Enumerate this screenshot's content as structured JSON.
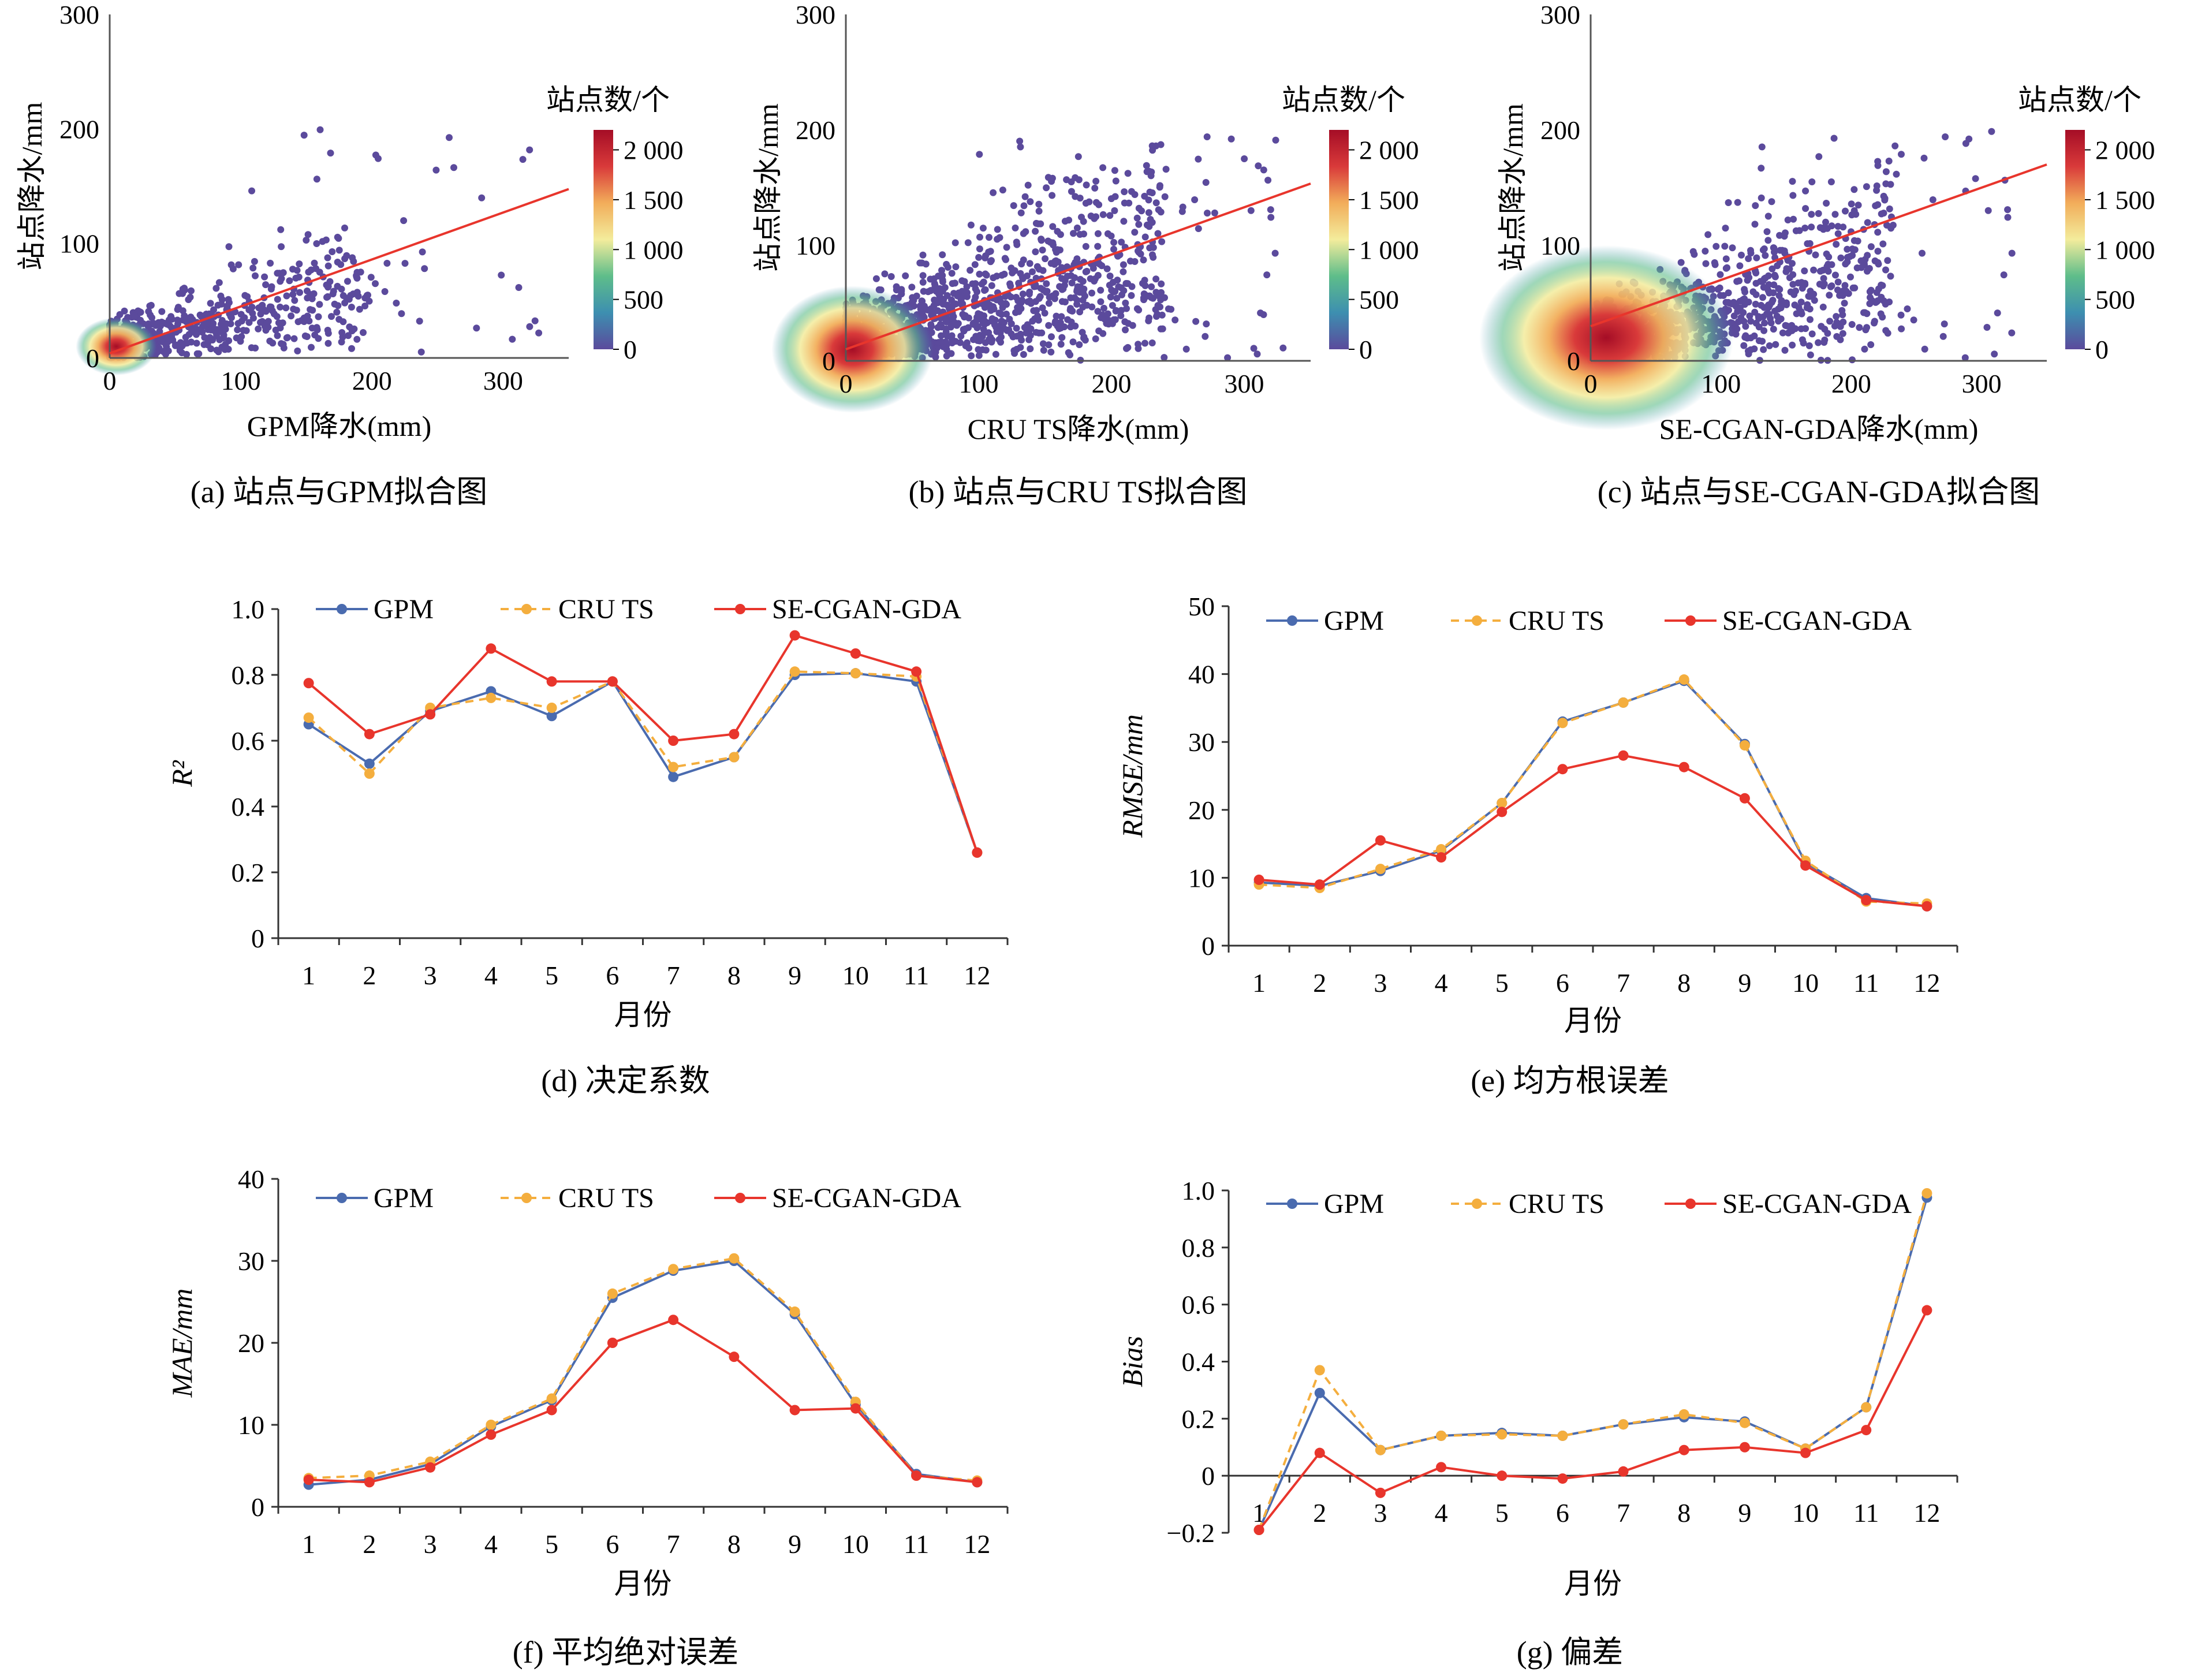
{
  "colors": {
    "gpm": "#4a6baf",
    "cru": "#f4ae3e",
    "sgg": "#e8352c",
    "fit_line": "#e8352c",
    "scatter_low": "#5b4a9c",
    "colormap": [
      "#5b4a9c",
      "#3d8fb0",
      "#5ebd8a",
      "#f3ec9c",
      "#f2ad5a",
      "#d93a3a",
      "#a50d26"
    ]
  },
  "scatter": {
    "ylabel": "站点降水/mm",
    "colorbar_title": "站点数/个",
    "axis_ticks": [
      "0",
      "100",
      "200",
      "300"
    ],
    "panels": [
      {
        "caption": "(a) 站点与GPM拟合图",
        "xlabel": "GPM降水(mm)",
        "colorbar_ticks": [
          "2 000",
          "1 500",
          "1 000",
          "500",
          "0"
        ],
        "colorbar_max": 2200,
        "fit": {
          "intercept": 4,
          "slope": 0.41
        }
      },
      {
        "caption": "(b) 站点与CRU TS拟合图",
        "xlabel": "CRU TS降水(mm)",
        "colorbar_ticks": [
          "2 000",
          "1 500",
          "1 000",
          "500",
          "0"
        ],
        "colorbar_max": 2200,
        "fit": {
          "intercept": 10,
          "slope": 0.41
        }
      },
      {
        "caption": "(c) 站点与SE-CGAN-GDA拟合图",
        "xlabel": "SE-CGAN-GDA降水(mm)",
        "colorbar_ticks": [
          "2 000",
          "1 500",
          "1 000",
          "500",
          "0"
        ],
        "colorbar_max": 2200,
        "fit": {
          "intercept": 30,
          "slope": 0.4
        }
      }
    ]
  },
  "chart_data": [
    {
      "type": "scatter",
      "title": "(a) 站点与GPM拟合图",
      "xlabel": "GPM降水(mm)",
      "ylabel": "站点降水/mm",
      "xlim": [
        0,
        350
      ],
      "ylim": [
        0,
        300
      ],
      "colorbar": {
        "label": "站点数/个",
        "range": [
          0,
          2200
        ]
      },
      "fit_line": {
        "x": [
          0,
          350
        ],
        "y": [
          4,
          147
        ]
      }
    },
    {
      "type": "scatter",
      "title": "(b) 站点与CRU TS拟合图",
      "xlabel": "CRU TS降水(mm)",
      "ylabel": "站点降水/mm",
      "xlim": [
        0,
        350
      ],
      "ylim": [
        0,
        300
      ],
      "colorbar": {
        "label": "站点数/个",
        "range": [
          0,
          2200
        ]
      },
      "fit_line": {
        "x": [
          0,
          350
        ],
        "y": [
          10,
          153
        ]
      }
    },
    {
      "type": "scatter",
      "title": "(c) 站点与SE-CGAN-GDA拟合图",
      "xlabel": "SE-CGAN-GDA降水(mm)",
      "ylabel": "站点降水/mm",
      "xlim": [
        0,
        350
      ],
      "ylim": [
        0,
        300
      ],
      "colorbar": {
        "label": "站点数/个",
        "range": [
          0,
          2200
        ]
      },
      "fit_line": {
        "x": [
          0,
          350
        ],
        "y": [
          30,
          170
        ]
      }
    },
    {
      "type": "line",
      "title": "(d) 决定系数",
      "xlabel": "月份",
      "ylabel": "R²",
      "x": [
        1,
        2,
        3,
        4,
        5,
        6,
        7,
        8,
        9,
        10,
        11,
        12
      ],
      "ylim": [
        0,
        1.0
      ],
      "yticks": [
        "0",
        "0.2",
        "0.4",
        "0.6",
        "0.8",
        "1.0"
      ],
      "series": [
        {
          "name": "GPM",
          "values": [
            0.65,
            0.53,
            0.69,
            0.75,
            0.675,
            0.78,
            0.49,
            0.55,
            0.8,
            0.805,
            0.78,
            0.26
          ]
        },
        {
          "name": "CRU TS",
          "values": [
            0.67,
            0.5,
            0.7,
            0.73,
            0.7,
            0.78,
            0.52,
            0.55,
            0.81,
            0.805,
            0.795,
            0.26
          ]
        },
        {
          "name": "SE-CGAN-GDA",
          "values": [
            0.775,
            0.62,
            0.68,
            0.88,
            0.78,
            0.78,
            0.6,
            0.62,
            0.92,
            0.865,
            0.81,
            0.26
          ]
        }
      ]
    },
    {
      "type": "line",
      "title": "(e) 均方根误差",
      "xlabel": "月份",
      "ylabel": "RMSE/mm",
      "x": [
        1,
        2,
        3,
        4,
        5,
        6,
        7,
        8,
        9,
        10,
        11,
        12
      ],
      "ylim": [
        0,
        50
      ],
      "yticks": [
        "0",
        "10",
        "20",
        "30",
        "40",
        "50"
      ],
      "series": [
        {
          "name": "GPM",
          "values": [
            9.3,
            8.8,
            11.0,
            14.0,
            21.0,
            33.0,
            35.8,
            39.0,
            29.7,
            12.2,
            7.0,
            5.8
          ]
        },
        {
          "name": "CRU TS",
          "values": [
            9.0,
            8.5,
            11.3,
            14.2,
            21.0,
            32.8,
            35.8,
            39.2,
            29.5,
            12.5,
            6.5,
            6.2
          ]
        },
        {
          "name": "SE-CGAN-GDA",
          "values": [
            9.7,
            9.0,
            15.5,
            13.0,
            19.7,
            26.0,
            28.0,
            26.3,
            21.7,
            11.8,
            6.7,
            5.8
          ]
        }
      ]
    },
    {
      "type": "line",
      "title": "(f) 平均绝对误差",
      "xlabel": "月份",
      "ylabel": "MAE/mm",
      "x": [
        1,
        2,
        3,
        4,
        5,
        6,
        7,
        8,
        9,
        10,
        11,
        12
      ],
      "ylim": [
        0,
        40
      ],
      "yticks": [
        "0",
        "10",
        "20",
        "30",
        "40"
      ],
      "series": [
        {
          "name": "GPM",
          "values": [
            2.7,
            3.3,
            5.2,
            9.8,
            13.0,
            25.5,
            28.8,
            30.0,
            23.5,
            12.5,
            4.0,
            3.0
          ]
        },
        {
          "name": "CRU TS",
          "values": [
            3.5,
            3.8,
            5.5,
            10.0,
            13.2,
            26.0,
            29.0,
            30.3,
            23.8,
            12.8,
            3.8,
            3.2
          ]
        },
        {
          "name": "SE-CGAN-GDA",
          "values": [
            3.3,
            3.0,
            4.8,
            8.8,
            11.8,
            20.0,
            22.8,
            18.3,
            11.8,
            12.0,
            3.8,
            3.0
          ]
        }
      ]
    },
    {
      "type": "line",
      "title": "(g) 偏差",
      "xlabel": "月份",
      "ylabel": "Bias",
      "x": [
        1,
        2,
        3,
        4,
        5,
        6,
        7,
        8,
        9,
        10,
        11,
        12
      ],
      "ylim": [
        -0.2,
        1.0
      ],
      "yticks": [
        "−0.2",
        "0",
        "0.2",
        "0.4",
        "0.6",
        "0.8",
        "1.0"
      ],
      "series": [
        {
          "name": "GPM",
          "values": [
            -0.19,
            0.29,
            0.09,
            0.14,
            0.15,
            0.14,
            0.18,
            0.205,
            0.19,
            0.095,
            0.24,
            0.975
          ]
        },
        {
          "name": "CRU TS",
          "values": [
            -0.19,
            0.37,
            0.09,
            0.14,
            0.145,
            0.14,
            0.18,
            0.215,
            0.185,
            0.095,
            0.24,
            0.99
          ]
        },
        {
          "name": "SE-CGAN-GDA",
          "values": [
            -0.19,
            0.08,
            -0.06,
            0.03,
            0.0,
            -0.01,
            0.015,
            0.09,
            0.1,
            0.08,
            0.16,
            0.58
          ]
        }
      ]
    }
  ]
}
